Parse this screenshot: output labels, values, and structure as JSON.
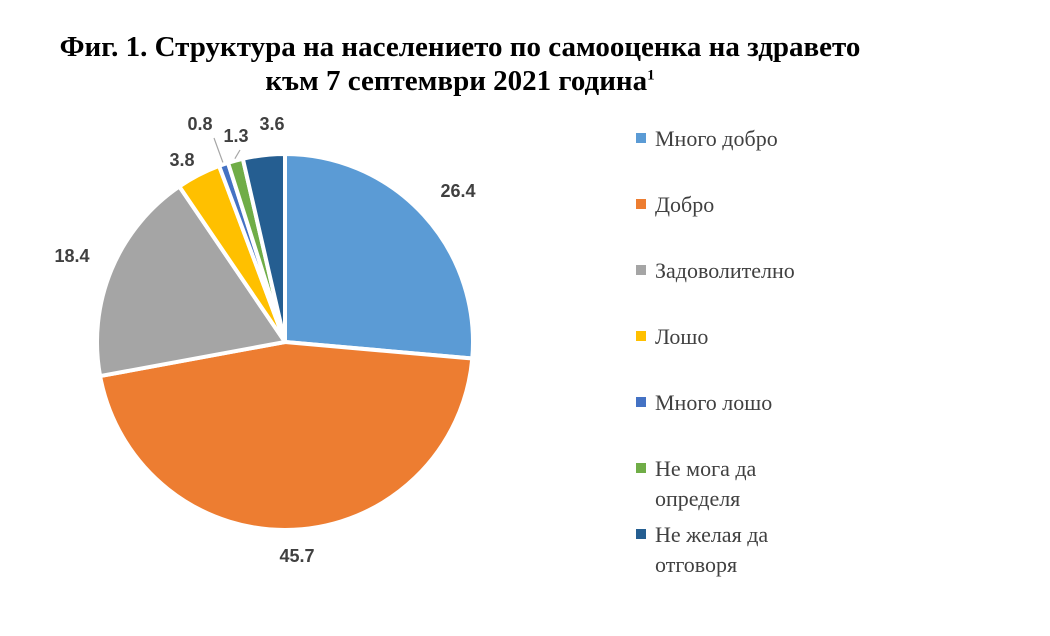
{
  "title": {
    "line1": "Фиг. 1. Структура на населението по самооценка на здравето",
    "line2": "към 7 септември 2021 година",
    "footnote": "1"
  },
  "chart_data": {
    "type": "pie",
    "categories": [
      "Много добро",
      "Добро",
      "Задоволително",
      "Лошо",
      "Много лошо",
      "Не мога да определя",
      "Не желая да отговоря"
    ],
    "values": [
      26.4,
      45.7,
      18.4,
      3.8,
      0.8,
      1.3,
      3.6
    ],
    "labels": [
      "26.4",
      "45.7",
      "18.4",
      "3.8",
      "0.8",
      "1.3",
      "3.6"
    ],
    "colors": [
      "#5B9BD5",
      "#ED7D31",
      "#A5A5A5",
      "#FFC000",
      "#4472C4",
      "#70AD47",
      "#255E91"
    ],
    "legend_position": "right",
    "start_angle_deg": 0,
    "direction": "clockwise"
  }
}
